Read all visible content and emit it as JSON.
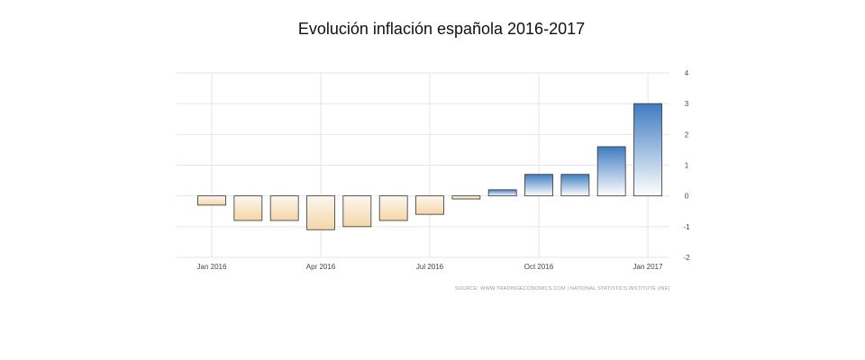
{
  "title": "Evolución inflación española 2016-2017",
  "source": "SOURCE: WWW.TRADINGECONOMICS.COM | NATIONAL STATISTICS INSTITUTE (INE)",
  "chart_data": {
    "type": "bar",
    "title": "Evolución inflación española 2016-2017",
    "xlabel": "",
    "ylabel": "",
    "categories": [
      "Jan 2016",
      "Feb 2016",
      "Mar 2016",
      "Apr 2016",
      "May 2016",
      "Jun 2016",
      "Jul 2016",
      "Aug 2016",
      "Sep 2016",
      "Oct 2016",
      "Nov 2016",
      "Dec 2016",
      "Jan 2017"
    ],
    "values": [
      -0.3,
      -0.8,
      -0.8,
      -1.1,
      -1.0,
      -0.8,
      -0.6,
      -0.1,
      0.2,
      0.7,
      0.7,
      1.6,
      3.0
    ],
    "x_tick_labels": [
      "Jan 2016",
      "Apr 2016",
      "Jul 2016",
      "Oct 2016",
      "Jan 2017"
    ],
    "x_tick_categories": [
      0,
      3,
      6,
      9,
      12
    ],
    "ylim": [
      -2,
      4
    ],
    "y_ticks": [
      4,
      3,
      2,
      1,
      0,
      -1,
      -2
    ],
    "y_axis_side": "right",
    "grid": true,
    "colors": {
      "positive_top": "#3f7cc0",
      "positive_bottom": "#ffffff",
      "negative_top": "#fdf7ee",
      "negative_bottom": "#f4d6a8",
      "bar_border": "#333333",
      "grid": "#e6e6e6"
    }
  }
}
